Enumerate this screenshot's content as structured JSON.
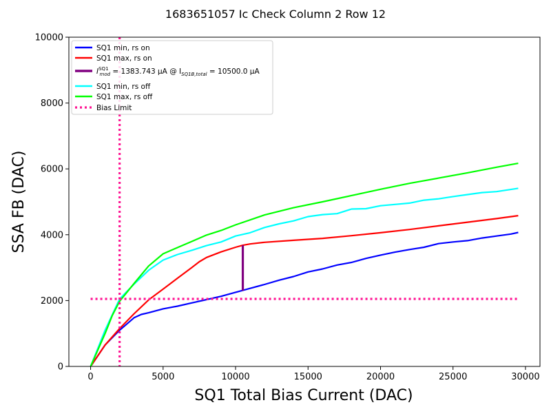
{
  "chart_data": {
    "type": "line",
    "title": "1683651057 Ic Check Column 2 Row 12",
    "xlabel": "SQ1 Total Bias Current (DAC)",
    "ylabel": "SSA FB (DAC)",
    "xlim": [
      -1500,
      31000
    ],
    "ylim": [
      0,
      10000
    ],
    "x_ticks": [
      0,
      5000,
      10000,
      15000,
      20000,
      25000,
      30000
    ],
    "x_tick_labels": [
      "0",
      "5000",
      "10000",
      "15000",
      "20000",
      "25000",
      "30000"
    ],
    "y_ticks": [
      0,
      2000,
      4000,
      6000,
      8000,
      10000
    ],
    "y_tick_labels": [
      "0",
      "2000",
      "4000",
      "6000",
      "8000",
      "10000"
    ],
    "grid": false,
    "legend_position": "top-left",
    "legend": [
      {
        "label": "SQ1 min, rs on",
        "color": "#0000ff",
        "style": "solid"
      },
      {
        "label": "SQ1 max, rs on",
        "color": "#ff0000",
        "style": "solid"
      },
      {
        "label_prefix": "I",
        "label_sub": "mod",
        "label_sup": "SQ1",
        "label_mid": " = 1383.743 μA @ I",
        "label_sub2": "SQ1B,total",
        "label_suffix": " = 10500.0 μA",
        "color": "#800080",
        "style": "solid"
      },
      {
        "label": "SQ1 min, rs off",
        "color": "#00ffff",
        "style": "solid"
      },
      {
        "label": "SQ1 max, rs off",
        "color": "#00ff00",
        "style": "solid"
      },
      {
        "label": "Bias Limit",
        "color": "#ff1493",
        "style": "dotted"
      }
    ],
    "series": [
      {
        "color": "#0000ff",
        "x": [
          0,
          1000,
          2000,
          3000,
          3500,
          4000,
          5000,
          6000,
          7000,
          8000,
          9000,
          10000,
          11000,
          12000,
          13000,
          14000,
          15000,
          16000,
          17000,
          18000,
          19000,
          20000,
          21000,
          22000,
          23000,
          24000,
          25000,
          26000,
          27000,
          28000,
          29000,
          29500
        ],
        "y": [
          0,
          650,
          1100,
          1480,
          1580,
          1630,
          1750,
          1830,
          1930,
          2030,
          2130,
          2250,
          2370,
          2490,
          2620,
          2730,
          2870,
          2960,
          3080,
          3160,
          3280,
          3380,
          3470,
          3550,
          3620,
          3730,
          3780,
          3820,
          3900,
          3960,
          4020,
          4070
        ]
      },
      {
        "color": "#ff0000",
        "x": [
          0,
          1000,
          2000,
          3000,
          4000,
          5000,
          6000,
          7000,
          7500,
          8000,
          9000,
          10000,
          10500,
          11000,
          12000,
          14000,
          16000,
          18000,
          20000,
          22000,
          24000,
          26000,
          28000,
          29500
        ],
        "y": [
          0,
          650,
          1150,
          1600,
          2020,
          2350,
          2680,
          3010,
          3180,
          3310,
          3480,
          3620,
          3680,
          3720,
          3770,
          3830,
          3890,
          3970,
          4060,
          4160,
          4270,
          4380,
          4490,
          4580
        ]
      },
      {
        "color": "#00ffff",
        "x": [
          0,
          1000,
          2000,
          3000,
          4000,
          5000,
          6000,
          7000,
          8000,
          9000,
          10000,
          11000,
          12000,
          13000,
          14000,
          15000,
          16000,
          17000,
          18000,
          19000,
          20000,
          21000,
          22000,
          23000,
          24000,
          25000,
          26000,
          27000,
          28000,
          29500
        ],
        "y": [
          0,
          1100,
          2050,
          2500,
          2920,
          3230,
          3400,
          3530,
          3670,
          3780,
          3960,
          4060,
          4220,
          4330,
          4420,
          4550,
          4610,
          4640,
          4780,
          4790,
          4880,
          4920,
          4960,
          5050,
          5090,
          5160,
          5220,
          5280,
          5310,
          5410
        ]
      },
      {
        "color": "#00ff00",
        "x": [
          0,
          1000,
          1500,
          2000,
          3000,
          4000,
          5000,
          6000,
          7000,
          8000,
          9000,
          10000,
          12000,
          14000,
          16000,
          18000,
          20000,
          22000,
          24000,
          26000,
          28000,
          29500
        ],
        "y": [
          0,
          1000,
          1550,
          1980,
          2520,
          3050,
          3420,
          3610,
          3800,
          3990,
          4130,
          4300,
          4600,
          4820,
          5000,
          5190,
          5380,
          5560,
          5720,
          5880,
          6050,
          6170
        ]
      }
    ],
    "vertical_segment": {
      "color": "#800080",
      "x": 10500,
      "y0": 2300,
      "y1": 3680
    },
    "bias_limits": {
      "color": "#ff1493",
      "x": 2000,
      "y": 2050,
      "h_x_range": [
        0,
        29500
      ]
    }
  }
}
